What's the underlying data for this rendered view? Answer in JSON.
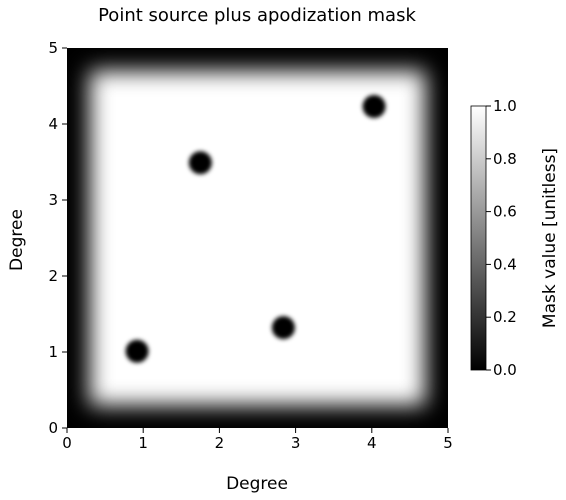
{
  "chart_data": {
    "type": "heatmap",
    "title": "Point source plus apodization mask",
    "xlabel": "Degree",
    "ylabel": "Degree",
    "xlim": [
      0,
      5
    ],
    "ylim": [
      0,
      5
    ],
    "xticks": [
      0,
      1,
      2,
      3,
      4,
      5
    ],
    "yticks": [
      0,
      1,
      2,
      3,
      4,
      5
    ],
    "colormap": "gray",
    "colorbar": {
      "label": "Mask value [unitless]",
      "range": [
        0.0,
        1.0
      ],
      "ticks": [
        "0.0",
        "0.2",
        "0.4",
        "0.6",
        "0.8",
        "1.0"
      ]
    },
    "apodized_region": {
      "x": [
        0.3,
        4.7
      ],
      "y": [
        0.3,
        4.7
      ]
    },
    "point_sources": [
      {
        "x": 0.92,
        "y": 1.01,
        "value": 0.0
      },
      {
        "x": 1.75,
        "y": 3.49,
        "value": 0.0
      },
      {
        "x": 2.84,
        "y": 1.32,
        "value": 0.0
      },
      {
        "x": 4.03,
        "y": 4.23,
        "value": 0.0
      }
    ],
    "grid": false
  }
}
